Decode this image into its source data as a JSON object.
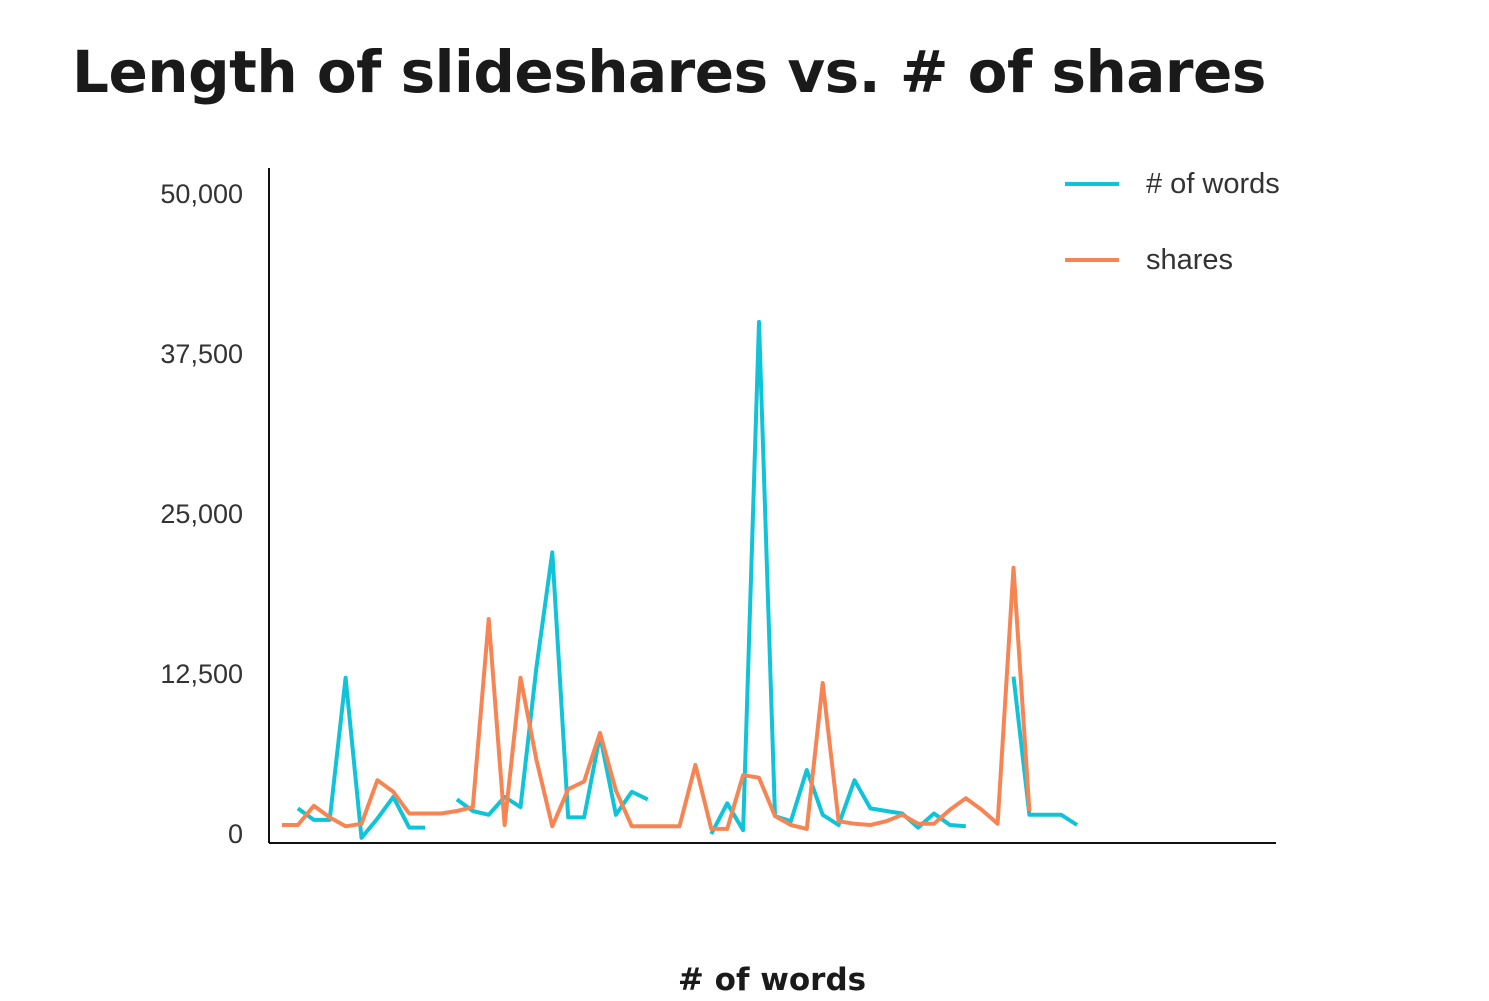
{
  "title": "Length of slideshares vs. # of shares",
  "chart_data": {
    "type": "line",
    "title": "Length of slideshares vs. # of shares",
    "xlabel": "# of words",
    "ylabel": "",
    "ylim": [
      0,
      50000
    ],
    "yticks": [
      0,
      12500,
      25000,
      37500,
      50000
    ],
    "ytick_labels": [
      "0",
      "12,500",
      "25,000",
      "37,500",
      "50,000"
    ],
    "grid": false,
    "legend_position": "top-right",
    "x": [
      1,
      2,
      3,
      4,
      5,
      6,
      7,
      8,
      9,
      10,
      11,
      12,
      13,
      14,
      15,
      16,
      17,
      18,
      19,
      20,
      21,
      22,
      23,
      24,
      25,
      26,
      27,
      28,
      29,
      30,
      31,
      32,
      33,
      34,
      35,
      36,
      37,
      38,
      39,
      40,
      41,
      42,
      43,
      44,
      45,
      46,
      47,
      48,
      49,
      50,
      51,
      52,
      53,
      54,
      55,
      56,
      57,
      58,
      59,
      60,
      61,
      62
    ],
    "series": [
      {
        "name": "# of words",
        "color": "#0fc3d8",
        "values": [
          2000,
          1100,
          1100,
          12200,
          -300,
          1200,
          2900,
          500,
          500,
          null,
          2700,
          1800,
          1500,
          2900,
          2100,
          13000,
          22000,
          1300,
          1300,
          7700,
          1500,
          3300,
          2700,
          null,
          null,
          null,
          0,
          2400,
          300,
          40000,
          1400,
          1000,
          5000,
          1500,
          700,
          4200,
          2000,
          1800,
          1600,
          500,
          1600,
          700,
          600,
          null,
          null,
          12300,
          1500,
          1500,
          1500,
          700,
          null,
          null,
          null,
          null
        ],
        "x": [
          2,
          3,
          4,
          5,
          6,
          7,
          8,
          9,
          10,
          11,
          12,
          13,
          14,
          15,
          16,
          17,
          18,
          19,
          20,
          21,
          22,
          23,
          24,
          25,
          26,
          27,
          28,
          29,
          30,
          31,
          32,
          33,
          34,
          35,
          36,
          37,
          38,
          39,
          40,
          41,
          42,
          43,
          44,
          45,
          46,
          47,
          48,
          49,
          50,
          51,
          52,
          53,
          54,
          55
        ]
      },
      {
        "name": "shares",
        "color": "#f78553",
        "values": [
          700,
          700,
          2200,
          1300,
          600,
          800,
          4200,
          3300,
          1600,
          1600,
          1600,
          1800,
          2100,
          16800,
          700,
          12200,
          5800,
          600,
          3500,
          4100,
          7900,
          3400,
          600,
          600,
          600,
          600,
          5400,
          400,
          400,
          4600,
          4400,
          1400,
          700,
          400,
          11800,
          1000,
          800,
          700,
          1000,
          1500,
          800,
          800,
          1900,
          2800,
          1900,
          800,
          20800,
          1800
        ],
        "x": [
          1,
          2,
          3,
          4,
          5,
          6,
          7,
          8,
          9,
          10,
          11,
          12,
          13,
          14,
          15,
          16,
          17,
          18,
          19,
          20,
          21,
          22,
          23,
          24,
          25,
          26,
          27,
          28,
          29,
          30,
          31,
          32,
          33,
          34,
          35,
          36,
          37,
          38,
          39,
          40,
          41,
          42,
          43,
          44,
          45,
          46,
          47,
          48
        ]
      }
    ]
  }
}
